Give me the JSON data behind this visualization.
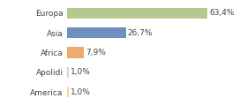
{
  "categories": [
    "Europa",
    "Asia",
    "Africa",
    "Apolidi",
    "America"
  ],
  "values": [
    63.4,
    26.7,
    7.9,
    1.0,
    1.0
  ],
  "labels": [
    "63,4%",
    "26,7%",
    "7,9%",
    "1,0%",
    "1,0%"
  ],
  "bar_colors": [
    "#b5c98e",
    "#6f8fbf",
    "#f0aa6e",
    "#d4d4d4",
    "#f5d97a"
  ],
  "background_color": "#ffffff",
  "xlim": [
    0,
    78
  ],
  "label_fontsize": 6.5,
  "tick_fontsize": 6.5
}
